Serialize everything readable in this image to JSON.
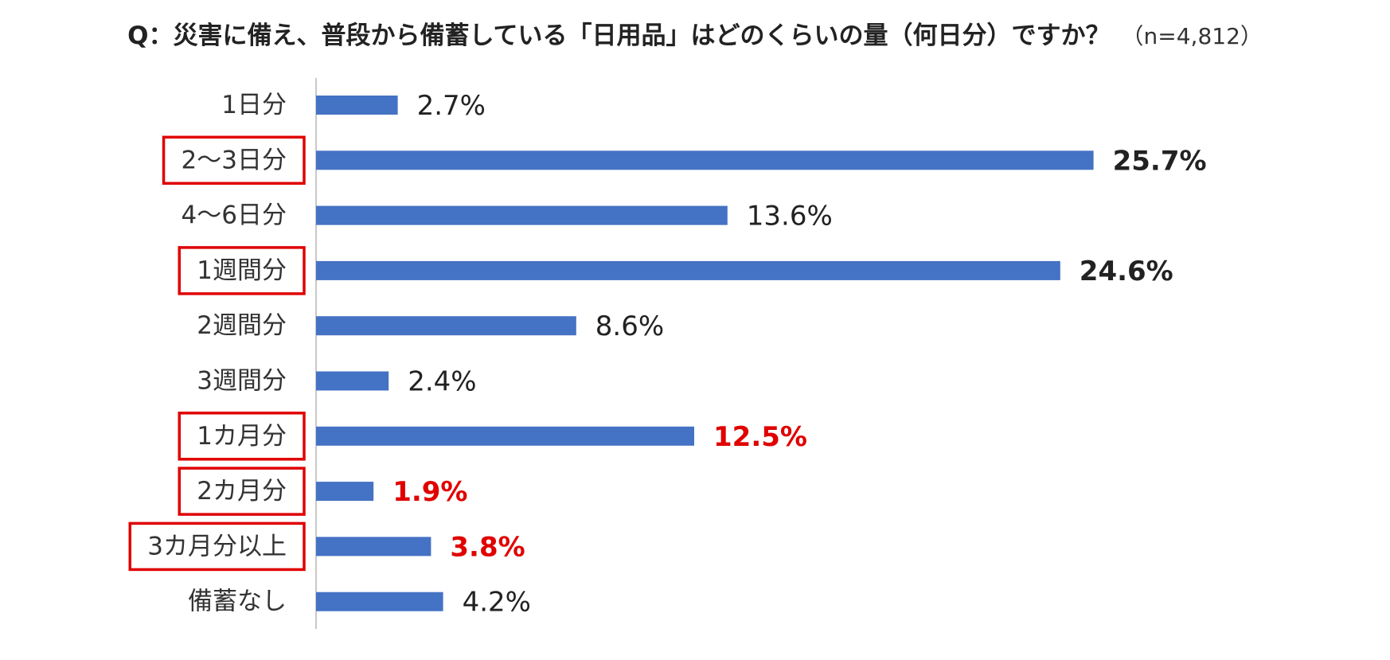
{
  "title": {
    "main": "Q：災害に備え、普段から備蓄している「日用品」はどのくらいの量（何日分）ですか？",
    "sample": "（n=4,812）"
  },
  "chart_data": {
    "type": "bar",
    "orientation": "horizontal",
    "unit": "%",
    "categories": [
      "1日分",
      "2～3日分",
      "4～6日分",
      "1週間分",
      "2週間分",
      "3週間分",
      "1カ月分",
      "2カ月分",
      "3カ月分以上",
      "備蓄なし"
    ],
    "values": [
      2.7,
      25.7,
      13.6,
      24.6,
      8.6,
      2.4,
      12.5,
      1.9,
      3.8,
      4.2
    ],
    "labels": [
      "2.7%",
      "25.7%",
      "13.6%",
      "24.6%",
      "8.6%",
      "2.4%",
      "12.5%",
      "1.9%",
      "3.8%",
      "4.2%"
    ],
    "label_style": [
      "normal",
      "bold",
      "normal",
      "bold",
      "normal",
      "normal",
      "highlight",
      "highlight",
      "highlight",
      "normal"
    ],
    "boxed_categories": [
      "2～3日分",
      "1週間分",
      "1カ月分",
      "2カ月分",
      "3カ月分以上"
    ],
    "xlim": [
      0,
      28
    ],
    "grid": false,
    "legend": "none",
    "colors": {
      "bar": "#4472C4",
      "axis": "#C8C8C8",
      "label": "#222222",
      "highlight": "#E00000",
      "box": "#E00000"
    }
  }
}
